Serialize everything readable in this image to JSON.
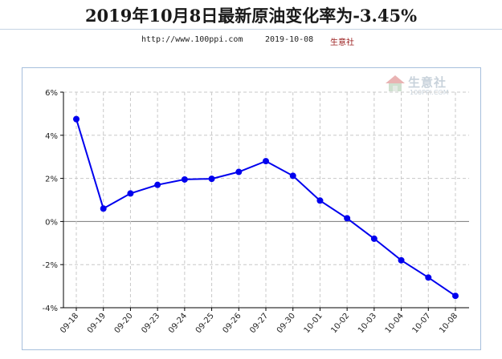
{
  "header": {
    "title": "2019年10月8日最新原油变化率为-3.45%",
    "url": "http://www.100ppi.com",
    "date": "2019-10-08",
    "brand": "生意社"
  },
  "watermark": {
    "name": "生意社",
    "url": "100PPI.COM",
    "icon": "house-logo-icon"
  },
  "colors": {
    "line": "#0000ee",
    "accent": "#9a1e1e",
    "border": "#a6bfdc"
  },
  "chart_data": {
    "type": "line",
    "title": "",
    "xlabel": "",
    "ylabel": "",
    "categories": [
      "09-18",
      "09-19",
      "09-20",
      "09-23",
      "09-24",
      "09-25",
      "09-26",
      "09-27",
      "09-30",
      "10-01",
      "10-02",
      "10-03",
      "10-04",
      "10-07",
      "10-08"
    ],
    "series": [
      {
        "values": [
          4.75,
          0.6,
          1.3,
          1.7,
          1.95,
          1.98,
          2.3,
          2.8,
          2.12,
          0.97,
          0.15,
          -0.8,
          -1.8,
          -2.6,
          -3.45
        ]
      }
    ],
    "ylim": [
      -4,
      6
    ],
    "yticks": [
      -4,
      -2,
      0,
      2,
      4,
      6
    ],
    "ytick_labels": [
      "-4%",
      "-2%",
      "0%",
      "2%",
      "4%",
      "6%"
    ],
    "grid": true
  }
}
